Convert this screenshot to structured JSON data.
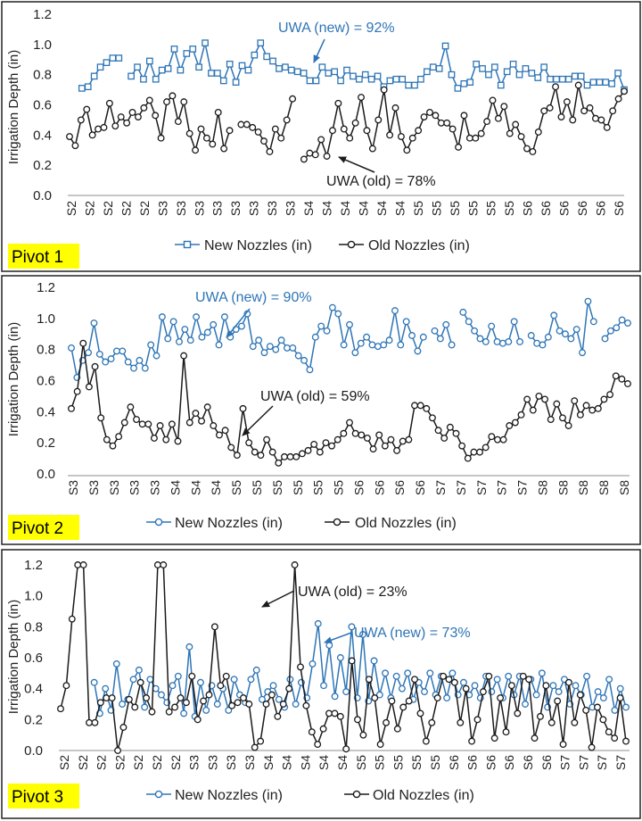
{
  "colors": {
    "new_series": "#2e75b6",
    "old_series": "#1a1a1a",
    "new_annotation": "#2e75b6",
    "old_annotation": "#1a1a1a",
    "pivot_highlight": "#ffff00"
  },
  "chart_data": [
    {
      "type": "line",
      "panel_label": "Pivot 1",
      "ylabel": "Irrigation Depth (in)",
      "ylim": [
        0,
        1.2
      ],
      "yticks": [
        "0.0",
        "0.2",
        "0.4",
        "0.6",
        "0.8",
        "1.0",
        "1.2"
      ],
      "x_tick_labels": [
        "S2",
        "S2",
        "S2",
        "S2",
        "S2",
        "S3",
        "S3",
        "S3",
        "S3",
        "S3",
        "S3",
        "S3",
        "S3",
        "S4",
        "S4",
        "S4",
        "S4",
        "S4",
        "S4",
        "S5",
        "S5",
        "S5",
        "S5",
        "S5",
        "S5",
        "S6",
        "S6",
        "S6",
        "S6",
        "S6",
        "S6"
      ],
      "legend_position": "bottom",
      "series": [
        {
          "name": "New Nozzles (in)",
          "marker": "square",
          "values": [
            null,
            null,
            0.71,
            0.72,
            0.79,
            0.85,
            0.88,
            0.91,
            0.91,
            null,
            0.79,
            0.85,
            0.77,
            0.89,
            0.77,
            0.83,
            0.84,
            0.97,
            0.83,
            0.94,
            0.97,
            0.85,
            1.01,
            0.81,
            0.81,
            0.76,
            0.87,
            0.75,
            0.86,
            0.83,
            0.93,
            1.01,
            0.92,
            0.89,
            0.84,
            0.85,
            0.83,
            0.82,
            0.81,
            0.76,
            0.76,
            0.85,
            0.81,
            0.82,
            0.76,
            0.83,
            0.79,
            0.77,
            0.8,
            0.77,
            0.79,
            0.72,
            0.76,
            0.77,
            0.77,
            0.73,
            0.73,
            0.77,
            0.82,
            0.85,
            0.84,
            0.99,
            0.8,
            0.71,
            0.74,
            0.75,
            0.87,
            0.84,
            0.8,
            0.85,
            0.73,
            0.82,
            0.87,
            0.8,
            0.84,
            0.81,
            0.78,
            0.85,
            0.77,
            0.77,
            0.77,
            0.77,
            0.79,
            0.79,
            0.73,
            0.75,
            0.75,
            0.75,
            0.74,
            0.81,
            0.7
          ]
        },
        {
          "name": "Old Nozzles (in)",
          "marker": "circle",
          "values": [
            0.39,
            0.33,
            0.5,
            0.57,
            0.4,
            0.44,
            0.45,
            0.61,
            0.46,
            0.52,
            0.48,
            0.55,
            0.52,
            0.58,
            0.63,
            0.53,
            0.38,
            0.62,
            0.66,
            0.49,
            0.62,
            0.41,
            0.3,
            0.44,
            0.38,
            0.34,
            0.55,
            0.31,
            0.43,
            null,
            0.47,
            0.47,
            0.45,
            0.42,
            0.36,
            0.29,
            0.44,
            0.38,
            0.5,
            0.64,
            null,
            0.24,
            0.28,
            0.27,
            0.37,
            0.26,
            0.43,
            0.61,
            0.44,
            0.38,
            0.48,
            0.65,
            0.43,
            0.31,
            0.5,
            0.7,
            0.4,
            0.58,
            0.39,
            0.3,
            0.38,
            0.43,
            0.52,
            0.55,
            0.53,
            0.48,
            0.48,
            0.44,
            0.32,
            0.53,
            0.38,
            0.38,
            0.41,
            0.49,
            0.63,
            0.51,
            0.59,
            0.41,
            0.47,
            0.39,
            0.31,
            0.29,
            0.42,
            0.56,
            0.58,
            0.72,
            0.52,
            0.62,
            0.5,
            0.73,
            0.56,
            0.58,
            0.51,
            0.5,
            0.45,
            0.56,
            0.64,
            0.69
          ]
        }
      ],
      "annotations": {
        "new": "UWA (new) = 92%",
        "old": "UWA (old) = 78%"
      }
    },
    {
      "type": "line",
      "panel_label": "Pivot 2",
      "ylabel": "Irrigation Depth (in)",
      "ylim": [
        0,
        1.2
      ],
      "yticks": [
        "0.0",
        "0.2",
        "0.4",
        "0.6",
        "0.8",
        "1.0",
        "1.2"
      ],
      "x_tick_labels": [
        "S3",
        "S3",
        "S3",
        "S3",
        "S3",
        "S4",
        "S4",
        "S4",
        "S5",
        "S5",
        "S5",
        "S5",
        "S5",
        "S5",
        "S6",
        "S6",
        "S6",
        "S6",
        "S7",
        "S7",
        "S7",
        "S7",
        "S7",
        "S8",
        "S8",
        "S8",
        "S8",
        "S8"
      ],
      "legend_position": "bottom",
      "series": [
        {
          "name": "New Nozzles (in)",
          "marker": "circle",
          "values": [
            0.81,
            0.62,
            0.73,
            0.78,
            0.97,
            0.77,
            0.72,
            0.74,
            0.79,
            0.79,
            0.72,
            0.68,
            0.73,
            0.68,
            0.83,
            0.76,
            1.01,
            0.87,
            0.98,
            0.85,
            0.93,
            0.86,
            1.01,
            0.88,
            0.91,
            0.96,
            0.83,
            1.01,
            0.88,
            0.93,
            0.95,
            1.03,
            0.82,
            0.86,
            0.78,
            0.82,
            0.8,
            0.86,
            0.81,
            0.81,
            0.76,
            0.73,
            0.67,
            0.88,
            0.95,
            0.92,
            1.07,
            1.03,
            0.83,
            0.96,
            0.78,
            0.84,
            0.88,
            0.83,
            0.82,
            0.83,
            0.86,
            1.05,
            0.83,
            0.98,
            0.89,
            0.79,
            0.88,
            null,
            0.92,
            0.87,
            0.96,
            0.83,
            null,
            1.04,
            0.98,
            0.92,
            0.87,
            0.85,
            0.95,
            0.85,
            0.84,
            0.85,
            0.98,
            0.85,
            null,
            0.89,
            0.84,
            0.83,
            0.88,
            1.02,
            0.92,
            0.9,
            0.87,
            0.93,
            0.78,
            1.11,
            0.98,
            null,
            0.87,
            0.92,
            0.94,
            0.99,
            0.97
          ]
        },
        {
          "name": "Old Nozzles (in)",
          "marker": "circle",
          "values": [
            0.42,
            0.53,
            0.84,
            0.56,
            0.69,
            0.36,
            0.22,
            0.18,
            0.24,
            0.33,
            0.43,
            0.35,
            0.32,
            0.32,
            0.23,
            0.31,
            0.22,
            0.32,
            0.21,
            0.76,
            0.33,
            0.39,
            0.34,
            0.43,
            0.31,
            0.25,
            0.28,
            0.17,
            0.12,
            0.42,
            0.2,
            0.14,
            0.12,
            0.22,
            0.14,
            0.07,
            0.11,
            0.11,
            0.11,
            0.13,
            0.15,
            0.19,
            0.14,
            0.2,
            0.18,
            0.22,
            0.26,
            0.33,
            0.26,
            0.25,
            0.23,
            0.16,
            0.25,
            0.18,
            0.22,
            0.15,
            0.21,
            0.22,
            0.44,
            0.44,
            0.42,
            0.36,
            0.28,
            0.23,
            0.3,
            0.26,
            0.18,
            0.1,
            0.14,
            0.14,
            0.17,
            0.24,
            0.22,
            0.22,
            0.31,
            0.33,
            0.38,
            0.48,
            0.41,
            0.5,
            0.48,
            0.35,
            0.45,
            0.36,
            0.31,
            0.47,
            0.38,
            0.44,
            0.41,
            0.42,
            0.48,
            0.51,
            0.63,
            0.61,
            0.58
          ]
        }
      ],
      "annotations": {
        "new": "UWA (new) = 90%",
        "old": "UWA (old) = 59%"
      }
    },
    {
      "type": "line",
      "panel_label": "Pivot 3",
      "ylabel": "Irrigation Depth (in)",
      "ylim": [
        0,
        1.2
      ],
      "yticks": [
        "0.0",
        "0.2",
        "0.4",
        "0.6",
        "0.8",
        "1.0",
        "1.2"
      ],
      "x_tick_labels": [
        "S2",
        "S2",
        "S2",
        "S2",
        "S2",
        "S2",
        "S2",
        "S3",
        "S3",
        "S3",
        "S3",
        "S4",
        "S4",
        "S4",
        "S4",
        "S4",
        "S5",
        "S5",
        "S5",
        "S5",
        "S5",
        "S6",
        "S6",
        "S6",
        "S6",
        "S6",
        "S6",
        "S7",
        "S7",
        "S7",
        "S7"
      ],
      "legend_position": "bottom",
      "series": [
        {
          "name": "New Nozzles (in)",
          "marker": "circle",
          "values": [
            null,
            null,
            null,
            null,
            null,
            null,
            0.44,
            0.24,
            0.4,
            0.26,
            0.56,
            0.3,
            0.33,
            0.46,
            0.52,
            0.28,
            0.46,
            0.4,
            0.36,
            0.31,
            0.42,
            0.48,
            0.24,
            0.67,
            0.22,
            0.44,
            0.26,
            0.42,
            0.3,
            0.4,
            0.26,
            0.46,
            0.36,
            0.31,
            0.46,
            0.52,
            0.33,
            0.38,
            0.42,
            0.33,
            0.28,
            0.46,
            0.3,
            0.44,
            0.34,
            0.56,
            0.82,
            0.42,
            0.68,
            0.35,
            0.6,
            0.38,
            0.8,
            0.34,
            0.75,
            0.32,
            0.58,
            0.36,
            0.5,
            0.34,
            0.48,
            0.4,
            0.5,
            0.33,
            0.44,
            0.38,
            0.5,
            0.36,
            0.48,
            0.34,
            0.5,
            0.36,
            0.44,
            0.36,
            0.42,
            0.34,
            0.48,
            0.38,
            0.46,
            0.34,
            0.48,
            0.36,
            0.48,
            0.3,
            0.46,
            0.36,
            0.5,
            0.28,
            0.42,
            0.38,
            0.46,
            0.3,
            0.42,
            0.36,
            0.48,
            0.28,
            0.38,
            0.34,
            0.46,
            0.26,
            0.4,
            0.28
          ]
        },
        {
          "name": "Old Nozzles (in)",
          "marker": "circle",
          "values": [
            0.27,
            0.42,
            0.85,
            1.2,
            1.2,
            0.18,
            0.18,
            0.31,
            0.34,
            0.34,
            0.0,
            0.15,
            0.33,
            0.28,
            0.44,
            0.34,
            0.25,
            1.2,
            1.2,
            0.25,
            0.28,
            0.34,
            0.31,
            0.48,
            0.2,
            0.32,
            0.36,
            0.8,
            0.42,
            0.48,
            0.29,
            0.31,
            0.34,
            0.3,
            0.02,
            0.06,
            0.3,
            0.36,
            0.22,
            0.3,
            0.4,
            1.2,
            0.54,
            0.29,
            0.12,
            0.04,
            0.14,
            0.24,
            0.24,
            0.22,
            0.01,
            0.58,
            0.2,
            0.1,
            0.46,
            0.34,
            0.04,
            0.18,
            0.32,
            0.14,
            0.28,
            0.32,
            0.46,
            0.24,
            0.06,
            0.18,
            0.34,
            0.48,
            0.46,
            0.44,
            0.18,
            0.4,
            0.06,
            0.2,
            0.38,
            0.48,
            0.08,
            0.34,
            0.12,
            0.42,
            0.24,
            0.48,
            0.46,
            0.08,
            0.22,
            0.42,
            0.18,
            0.32,
            0.04,
            0.44,
            0.18,
            0.36,
            0.26,
            0.02,
            0.28,
            0.2,
            0.12,
            0.08,
            0.34,
            0.06
          ]
        }
      ],
      "annotations": {
        "new": "UWA (new) = 73%",
        "old": "UWA (old) = 23%"
      }
    }
  ]
}
